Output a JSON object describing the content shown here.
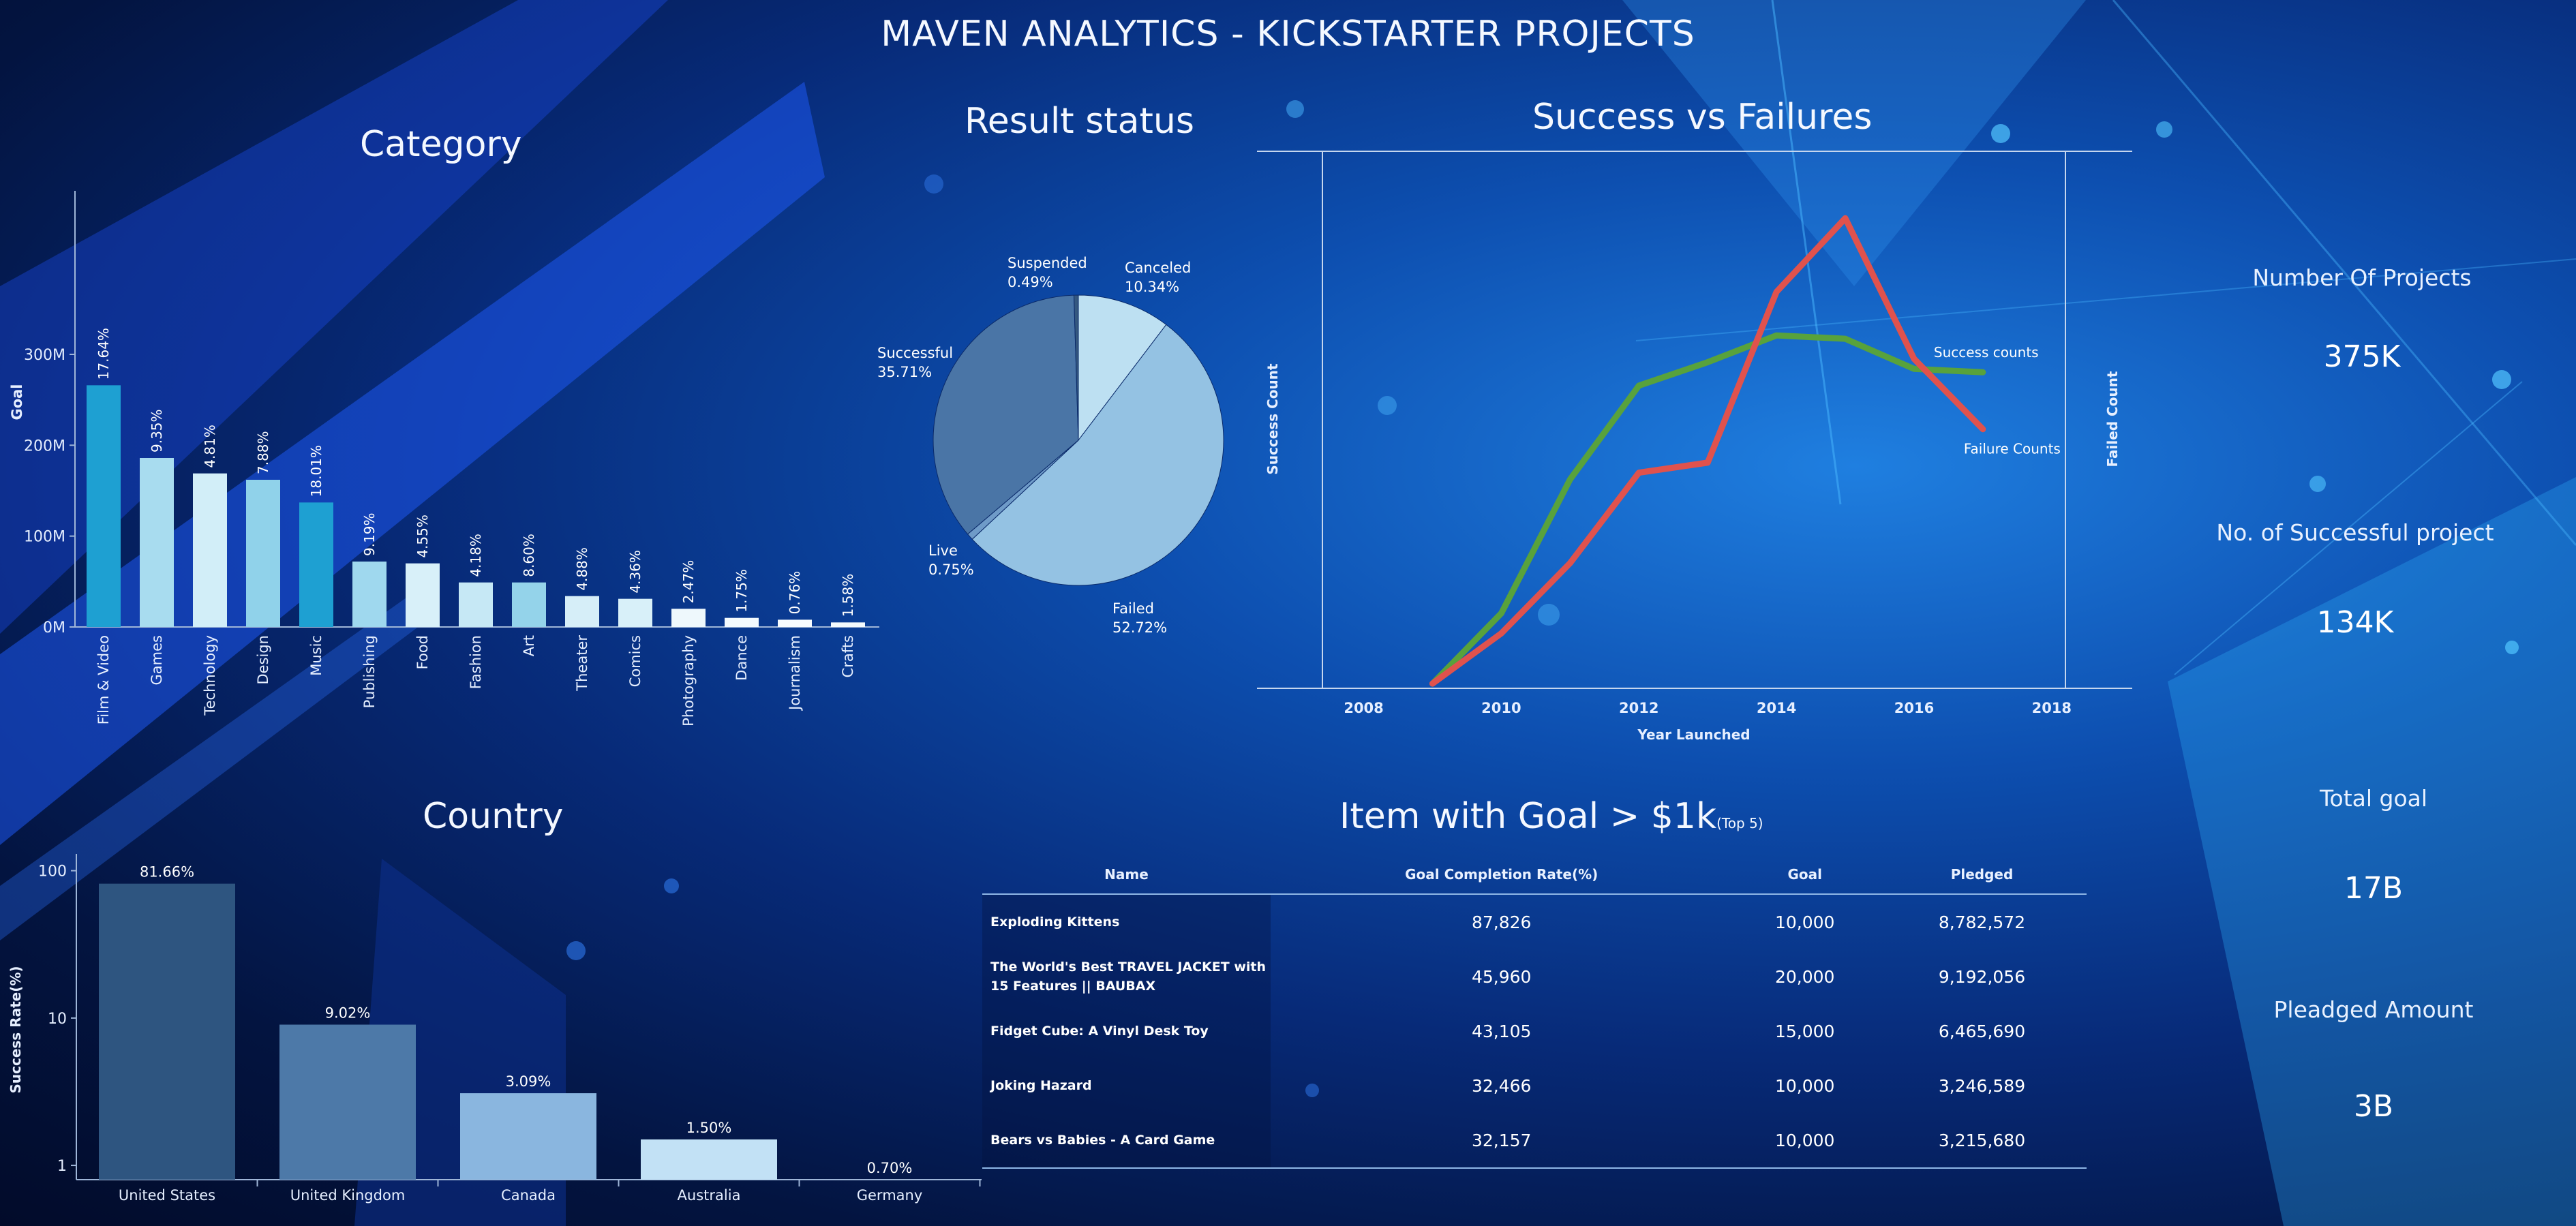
{
  "page": {
    "title": "MAVEN ANALYTICS - KICKSTARTER PROJECTS"
  },
  "colors": {
    "accent": "#1aa3d6",
    "line_success": "#58a23c",
    "line_failure": "#e0524d"
  },
  "category": {
    "title": "Category",
    "chart_data": {
      "type": "bar",
      "ylabel": "Goal",
      "yticks": [
        "0M",
        "100M",
        "200M",
        "300M"
      ],
      "ylim": [
        0,
        300
      ],
      "categories": [
        "Film & Video",
        "Games",
        "Technology",
        "Design",
        "Music",
        "Publishing",
        "Food",
        "Fashion",
        "Art",
        "Theater",
        "Comics",
        "Photography",
        "Dance",
        "Journalism",
        "Crafts"
      ],
      "values": [
        266,
        186,
        169,
        162,
        137,
        72,
        70,
        49,
        49,
        34,
        31,
        20,
        10,
        8,
        5
      ],
      "labels": [
        "17.64%",
        "9.35%",
        "4.81%",
        "7.88%",
        "18.01%",
        "9.19%",
        "4.55%",
        "4.18%",
        "8.60%",
        "4.88%",
        "4.36%",
        "2.47%",
        "1.75%",
        "0.76%",
        "1.58%"
      ],
      "colors": [
        "#1ea0d2",
        "#a8dcef",
        "#d2eef8",
        "#90d2ea",
        "#1ea0d2",
        "#9fd8ee",
        "#d8f0f9",
        "#c6e8f5",
        "#94d3ea",
        "#d6eef8",
        "#d8f0f9",
        "#eef8fc",
        "#f4fbfe",
        "#f6fbfe",
        "#f3fafd"
      ]
    }
  },
  "result": {
    "title": "Result status",
    "chart_data": {
      "type": "pie",
      "slices": [
        {
          "name": "Canceled",
          "value": 10.34,
          "label": "10.34%",
          "color": "#bde0f2"
        },
        {
          "name": "Failed",
          "value": 52.72,
          "label": "52.72%",
          "color": "#94c2e3"
        },
        {
          "name": "Live",
          "value": 0.75,
          "label": "0.75%",
          "color": "#6f9bc8"
        },
        {
          "name": "Successful",
          "value": 35.71,
          "label": "35.71%",
          "color": "#4a75a6"
        },
        {
          "name": "Suspended",
          "value": 0.49,
          "label": "0.49%",
          "color": "#35587f"
        }
      ]
    }
  },
  "svf": {
    "title": "Success vs Failures",
    "chart_data": {
      "type": "line",
      "xlabel": "Year Launched",
      "ylabel_left": "Success Count",
      "ylabel_right": "Failed Count",
      "xlim": [
        2007.4,
        2018.2
      ],
      "xticks": [
        "2008",
        "2010",
        "2012",
        "2014",
        "2016",
        "2018"
      ],
      "series": [
        {
          "name": "Success counts",
          "color": "#58a23c",
          "x": [
            2009,
            2010,
            2011,
            2012,
            2013,
            2014,
            2015,
            2016,
            2017
          ],
          "y": [
            1,
            22,
            62,
            90,
            97,
            105,
            104,
            95,
            94
          ]
        },
        {
          "name": "Failure Counts",
          "color": "#e0524d",
          "x": [
            2009,
            2010,
            2011,
            2012,
            2013,
            2014,
            2015,
            2016,
            2017
          ],
          "y": [
            1,
            16,
            37,
            64,
            67,
            118,
            140,
            98,
            77
          ]
        }
      ],
      "ylim": [
        0,
        160
      ]
    }
  },
  "country": {
    "title": "Country",
    "chart_data": {
      "type": "bar",
      "scale": "log",
      "ylabel": "Success Rate(%)",
      "yticks": [
        "1",
        "10",
        "100"
      ],
      "ylim": [
        0.8,
        130
      ],
      "categories": [
        "United States",
        "United Kingdom",
        "Canada",
        "Australia",
        "Germany"
      ],
      "values": [
        81.66,
        9.02,
        3.09,
        1.5,
        0.7
      ],
      "labels": [
        "81.66%",
        "9.02%",
        "3.09%",
        "1.50%",
        "0.70%"
      ],
      "colors": [
        "#2e5580",
        "#4d79a8",
        "#8ab6df",
        "#c2e1f5",
        "#d6ecf8"
      ]
    }
  },
  "items": {
    "title": "Item with Goal > $1k",
    "subtitle": "(Top 5)",
    "headers": [
      "Name",
      "Goal Completion Rate(%)",
      "Goal",
      "Pledged"
    ],
    "rows": [
      [
        "Exploding Kittens",
        "87,826",
        "10,000",
        "8,782,572"
      ],
      [
        "The World's Best TRAVEL JACKET with 15 Features || BAUBAX",
        "45,960",
        "20,000",
        "9,192,056"
      ],
      [
        "Fidget Cube: A Vinyl Desk Toy",
        "43,105",
        "15,000",
        "6,465,690"
      ],
      [
        "Joking Hazard",
        "32,466",
        "10,000",
        "3,246,589"
      ],
      [
        "Bears vs Babies - A Card Game",
        "32,157",
        "10,000",
        "3,215,680"
      ]
    ]
  },
  "kpis": [
    {
      "label": "Number Of Projects",
      "value": "375K"
    },
    {
      "label": "No. of Successful project",
      "value": "134K"
    },
    {
      "label": "Total goal",
      "value": "17B"
    },
    {
      "label": "Pleadged Amount",
      "value": "3B"
    }
  ]
}
